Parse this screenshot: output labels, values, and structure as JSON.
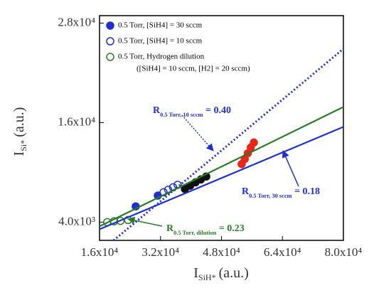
{
  "chart_data": {
    "type": "scatter",
    "x_label": {
      "main": "I",
      "sub": "SiH*",
      "unit": "(a.u.)"
    },
    "y_label": {
      "main": "I",
      "sub": "Si*",
      "unit": "(a.u.)"
    },
    "xlim": [
      16000,
      80000
    ],
    "ylim": [
      1800,
      28900
    ],
    "xticks": [
      {
        "value": 16000,
        "label": "1.6x10⁴"
      },
      {
        "value": 32000,
        "label": "3.2x10⁴"
      },
      {
        "value": 48000,
        "label": "4.8x10⁴"
      },
      {
        "value": 64000,
        "label": "6.4x10⁴"
      },
      {
        "value": 80000,
        "label": "8.0x10⁴"
      }
    ],
    "yticks": [
      {
        "value": 4000,
        "label": "4.0x10³"
      },
      {
        "value": 16000,
        "label": "1.6x10⁴"
      },
      {
        "value": 28000,
        "label": "2.8x10⁴"
      }
    ],
    "legend_note": "([SiH4] = 10 sccm, [H2] = 20 sccm)",
    "series": [
      {
        "name": "0.5 Torr, [SiH4] = 30 sccm",
        "color": "#1f2fd0",
        "marker": "filled",
        "x": [
          25500,
          31300
        ],
        "values": [
          5900,
          7200
        ]
      },
      {
        "name": "0.5 Torr, [SiH4] = 10 sccm",
        "color": "#1f2fd0",
        "marker": "open",
        "x": [
          32800,
          34000,
          35300,
          36500
        ],
        "values": [
          7600,
          7900,
          8200,
          8500
        ]
      },
      {
        "name": "0.5 Torr, Hydrogen dilution",
        "color": "#2a7a2a",
        "marker": "open",
        "x": [
          18000,
          19800,
          21500,
          23500
        ],
        "values": [
          4000,
          4100,
          4150,
          4250
        ]
      },
      {
        "color": "#111111",
        "marker": "filled",
        "x": [
          38400,
          39800,
          41200,
          42600,
          44000
        ],
        "values": [
          8000,
          8400,
          8800,
          9150,
          9500
        ]
      },
      {
        "color": "#e8261a",
        "marker": "filled",
        "x": [
          53300,
          54100,
          54900,
          55700,
          56500
        ],
        "values": [
          11000,
          11600,
          12300,
          13000,
          13600
        ]
      },
      {
        "color": "#1f2fd0",
        "line": "dotted",
        "x": [
          19700,
          80000
        ],
        "values": [
          1800,
          24900
        ]
      },
      {
        "color": "#1f2fd0",
        "line": "solid",
        "x": [
          16000,
          80000
        ],
        "values": [
          3140,
          15490
        ]
      },
      {
        "color": "#2a7a2a",
        "line": "solid",
        "x": [
          16000,
          80000
        ],
        "values": [
          3490,
          17890
        ]
      }
    ],
    "annotations": [
      {
        "main": "R",
        "sub": "0.5 Torr, 10 sccm",
        "text": " = 0.40",
        "color": "#1f2fd0"
      },
      {
        "main": "R",
        "sub": "0.5 Torr, 30 sccm",
        "text": " = 0.18",
        "color": "#1f2fd0"
      },
      {
        "main": "R",
        "sub": "0.5 Torr, dilution",
        "text": " = 0.23",
        "color": "#2a7a2a"
      }
    ]
  }
}
